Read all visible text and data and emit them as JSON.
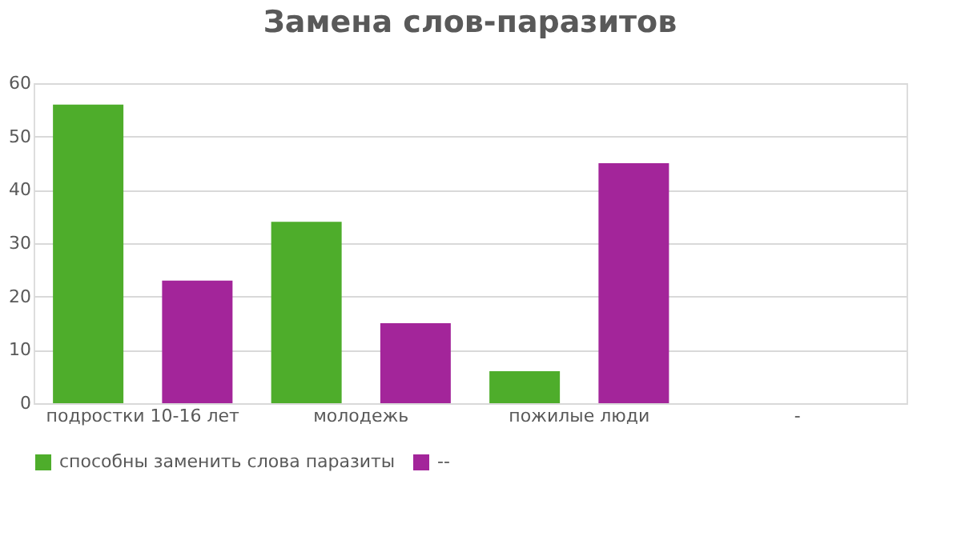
{
  "chart_data": {
    "type": "bar",
    "title": "Замена слов-паразитов",
    "categories": [
      "подростки 10-16 лет",
      "молодежь",
      "пожилые люди",
      "-"
    ],
    "series": [
      {
        "name": "способны заменить слова паразиты",
        "color": "#4ead2b",
        "values": [
          56,
          34,
          6,
          null
        ]
      },
      {
        "name": "--",
        "color": "#a3259a",
        "values": [
          23,
          15,
          45,
          null
        ]
      }
    ],
    "ylim": [
      0,
      60
    ],
    "yticks": [
      0,
      10,
      20,
      30,
      40,
      50,
      60
    ],
    "grid": "y",
    "legend": "bottom"
  }
}
